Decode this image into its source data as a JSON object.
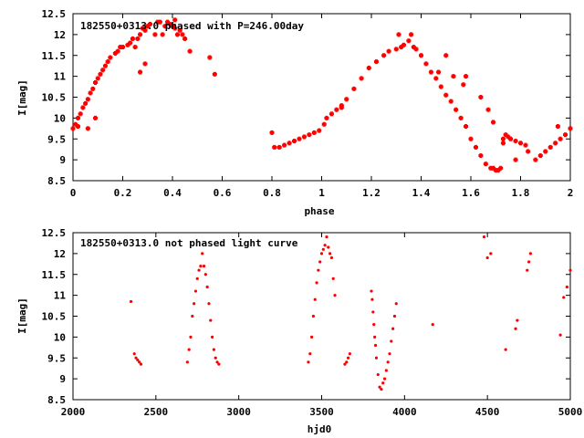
{
  "chart_data": [
    {
      "type": "scatter",
      "title": "182550+0313.0 phased with P=246.00day",
      "xlabel": "phase",
      "ylabel": "I[mag]",
      "xlim": [
        0,
        2
      ],
      "ylim": [
        12.5,
        8.5
      ],
      "y_inverted": true,
      "xticks": [
        0,
        0.2,
        0.4,
        0.6,
        0.8,
        1,
        1.2,
        1.4,
        1.6,
        1.8,
        2
      ],
      "xtick_labels": [
        "0",
        "0.2",
        "0.4",
        "0.6",
        "0.8",
        "1",
        "1.2",
        "1.4",
        "1.6",
        "1.8",
        "2"
      ],
      "yticks": [
        8.5,
        9,
        9.5,
        10,
        10.5,
        11,
        11.5,
        12,
        12.5
      ],
      "ytick_labels": [
        "8.5",
        "9",
        "9.5",
        "10",
        "10.5",
        "11",
        "11.5",
        "12",
        "12.5"
      ],
      "grid": false,
      "marker_color": "#ff0000",
      "series": [
        {
          "x": [
            0.0,
            0.01,
            0.02,
            0.03,
            0.04,
            0.05,
            0.06,
            0.07,
            0.08,
            0.09,
            0.1,
            0.11,
            0.12,
            0.13,
            0.14,
            0.15,
            0.17,
            0.18,
            0.19,
            0.2,
            0.22,
            0.23,
            0.24,
            0.25,
            0.26,
            0.27,
            0.28,
            0.29,
            0.3,
            0.31,
            0.33,
            0.34,
            0.36,
            0.37,
            0.38,
            0.39,
            0.4,
            0.41,
            0.42,
            0.43,
            0.44,
            0.45,
            0.47,
            0.55,
            0.57,
            0.8,
            0.81,
            0.83,
            0.85,
            0.87,
            0.89,
            0.91,
            0.93,
            0.95,
            0.97,
            0.99,
            1.01,
            1.02,
            1.04,
            1.06,
            1.08,
            1.1,
            1.13,
            1.16,
            1.19,
            1.22,
            1.25,
            1.27,
            1.3,
            1.32,
            1.33,
            1.35,
            1.37,
            1.38,
            1.4,
            1.42,
            1.44,
            1.46,
            1.48,
            1.5,
            1.52,
            1.54,
            1.56,
            1.58,
            1.6,
            1.62,
            1.64,
            1.66,
            1.68,
            1.69,
            1.7,
            1.71,
            1.72,
            1.73,
            1.74,
            1.75,
            1.76,
            1.78,
            1.8,
            1.83,
            1.86,
            1.88,
            1.9,
            1.92,
            1.94,
            1.96,
            1.98,
            2.0,
            0.02,
            0.06,
            0.27,
            0.29,
            0.35,
            0.41,
            0.09,
            1.5,
            1.58,
            1.64,
            1.69,
            1.67,
            1.73,
            1.78,
            1.82,
            1.95,
            1.08,
            1.31,
            1.36,
            1.47,
            1.53,
            1.57
          ],
          "y": [
            9.75,
            9.85,
            10.0,
            10.1,
            10.25,
            10.35,
            10.45,
            10.6,
            10.7,
            10.85,
            10.95,
            11.05,
            11.15,
            11.25,
            11.35,
            11.45,
            11.55,
            11.6,
            11.7,
            11.7,
            11.75,
            11.8,
            11.9,
            11.7,
            11.9,
            12.0,
            12.15,
            12.1,
            12.2,
            12.25,
            12.0,
            12.3,
            12.0,
            12.2,
            12.3,
            12.25,
            12.2,
            12.15,
            12.0,
            12.1,
            12.0,
            11.9,
            11.6,
            11.45,
            11.05,
            9.65,
            9.3,
            9.3,
            9.35,
            9.4,
            9.45,
            9.5,
            9.55,
            9.6,
            9.65,
            9.7,
            9.85,
            10.0,
            10.1,
            10.2,
            10.3,
            10.45,
            10.7,
            10.95,
            11.2,
            11.35,
            11.5,
            11.6,
            11.65,
            11.7,
            11.75,
            11.85,
            11.7,
            11.65,
            11.5,
            11.3,
            11.1,
            10.95,
            10.75,
            10.55,
            10.4,
            10.2,
            10.0,
            9.8,
            9.5,
            9.3,
            9.1,
            8.9,
            8.8,
            8.8,
            8.75,
            8.75,
            8.8,
            9.5,
            9.6,
            9.55,
            9.5,
            9.45,
            9.4,
            9.2,
            9.0,
            9.1,
            9.2,
            9.3,
            9.4,
            9.5,
            9.6,
            9.75,
            9.8,
            9.75,
            11.1,
            11.3,
            12.3,
            12.35,
            10.0,
            11.5,
            11.0,
            10.5,
            9.9,
            10.2,
            9.4,
            9.0,
            9.35,
            9.8,
            10.25,
            12.0,
            12.0,
            11.1,
            11.0,
            10.8
          ]
        }
      ]
    },
    {
      "type": "scatter",
      "title": "182550+0313.0 not phased light curve",
      "xlabel": "hjd0",
      "ylabel": "I[mag]",
      "xlim": [
        2000,
        5000
      ],
      "ylim": [
        12.5,
        8.5
      ],
      "y_inverted": true,
      "xticks": [
        2000,
        2500,
        3000,
        3500,
        4000,
        4500,
        5000
      ],
      "xtick_labels": [
        "2000",
        "2500",
        "3000",
        "3500",
        "4000",
        "4500",
        "5000"
      ],
      "yticks": [
        8.5,
        9,
        9.5,
        10,
        10.5,
        11,
        11.5,
        12,
        12.5
      ],
      "ytick_labels": [
        "8.5",
        "9",
        "9.5",
        "10",
        "10.5",
        "11",
        "11.5",
        "12",
        "12.5"
      ],
      "grid": false,
      "marker_color": "#ff0000",
      "series": [
        {
          "x": [
            2350,
            2370,
            2380,
            2390,
            2400,
            2410,
            2690,
            2700,
            2710,
            2720,
            2730,
            2740,
            2750,
            2760,
            2770,
            2780,
            2790,
            2800,
            2810,
            2820,
            2830,
            2840,
            2850,
            2860,
            2870,
            2880,
            3420,
            3430,
            3440,
            3450,
            3460,
            3470,
            3480,
            3490,
            3500,
            3510,
            3520,
            3530,
            3540,
            3550,
            3560,
            3570,
            3580,
            3640,
            3650,
            3660,
            3670,
            3800,
            3805,
            3810,
            3815,
            3820,
            3825,
            3830,
            3840,
            3850,
            3860,
            3870,
            3880,
            3890,
            3900,
            3910,
            3920,
            3930,
            3940,
            3950,
            4170,
            4480,
            4500,
            4520,
            4610,
            4670,
            4680,
            4740,
            4750,
            4760,
            4940,
            4960,
            4980,
            5000
          ],
          "y": [
            10.85,
            9.6,
            9.5,
            9.45,
            9.4,
            9.35,
            9.4,
            9.7,
            10.0,
            10.5,
            10.8,
            11.1,
            11.4,
            11.6,
            11.7,
            12.0,
            11.7,
            11.5,
            11.2,
            10.8,
            10.4,
            10.0,
            9.7,
            9.5,
            9.4,
            9.35,
            9.4,
            9.6,
            10.0,
            10.5,
            10.9,
            11.3,
            11.6,
            11.8,
            12.0,
            12.1,
            12.2,
            12.4,
            12.15,
            12.0,
            11.9,
            11.4,
            11.0,
            9.35,
            9.4,
            9.5,
            9.6,
            11.1,
            10.9,
            10.6,
            10.3,
            10.0,
            9.8,
            9.5,
            9.1,
            8.8,
            8.75,
            8.9,
            9.0,
            9.2,
            9.4,
            9.6,
            9.9,
            10.2,
            10.5,
            10.8,
            10.3,
            12.4,
            11.9,
            12.0,
            9.7,
            10.2,
            10.4,
            11.6,
            11.8,
            12.0,
            10.05,
            10.95,
            11.2,
            11.6
          ]
        }
      ]
    }
  ]
}
